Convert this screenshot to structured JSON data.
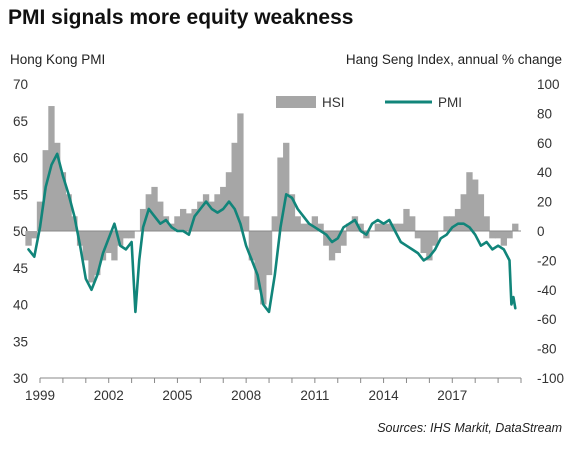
{
  "chart_data": {
    "type": "bar+line",
    "title": "PMI signals more equity weakness",
    "left_axis_label": "Hong Kong PMI",
    "right_axis_label": "Hang Seng Index, annual % change",
    "left_axis_ticks": [
      30,
      35,
      40,
      45,
      50,
      55,
      60,
      65,
      70
    ],
    "right_axis_ticks": [
      -100,
      -80,
      -60,
      -40,
      -20,
      0,
      20,
      40,
      60,
      80,
      100
    ],
    "ylim_left": [
      30,
      70
    ],
    "ylim_right": [
      -100,
      100
    ],
    "x_ticks": [
      "1999",
      "2002",
      "2005",
      "2008",
      "2011",
      "2014",
      "2017"
    ],
    "xlim": [
      1999.0,
      2020.0
    ],
    "legend_position": "top-center",
    "grid": false,
    "source": "Sources:  IHS Markit, DataStream",
    "colors": {
      "hsi": "#a6a6a6",
      "pmi": "#11857a",
      "axis": "#888888"
    },
    "series": [
      {
        "name": "HSI",
        "kind": "bar",
        "axis": "right",
        "x": [
          1998.5,
          1998.75,
          1999.0,
          1999.25,
          1999.5,
          1999.75,
          2000.0,
          2000.25,
          2000.5,
          2000.75,
          2001.0,
          2001.25,
          2001.5,
          2001.75,
          2002.0,
          2002.25,
          2002.5,
          2002.75,
          2003.0,
          2003.25,
          2003.5,
          2003.75,
          2004.0,
          2004.25,
          2004.5,
          2004.75,
          2005.0,
          2005.25,
          2005.5,
          2005.75,
          2006.0,
          2006.25,
          2006.5,
          2006.75,
          2007.0,
          2007.25,
          2007.5,
          2007.75,
          2008.0,
          2008.25,
          2008.5,
          2008.75,
          2009.0,
          2009.25,
          2009.5,
          2009.75,
          2010.0,
          2010.25,
          2010.5,
          2010.75,
          2011.0,
          2011.25,
          2011.5,
          2011.75,
          2012.0,
          2012.25,
          2012.5,
          2012.75,
          2013.0,
          2013.25,
          2013.5,
          2013.75,
          2014.0,
          2014.25,
          2014.5,
          2014.75,
          2015.0,
          2015.25,
          2015.5,
          2015.75,
          2016.0,
          2016.25,
          2016.5,
          2016.75,
          2017.0,
          2017.25,
          2017.5,
          2017.75,
          2018.0,
          2018.25,
          2018.5,
          2018.75,
          2019.0,
          2019.25,
          2019.5,
          2019.75
        ],
        "values": [
          -10,
          -5,
          20,
          55,
          85,
          60,
          40,
          25,
          10,
          -10,
          -20,
          -35,
          -30,
          -20,
          -15,
          -20,
          -10,
          -5,
          -5,
          0,
          15,
          25,
          30,
          20,
          10,
          5,
          10,
          15,
          12,
          15,
          20,
          25,
          20,
          25,
          30,
          40,
          60,
          80,
          10,
          -20,
          -40,
          -50,
          -30,
          10,
          50,
          60,
          25,
          10,
          5,
          5,
          10,
          5,
          -10,
          -20,
          -15,
          -10,
          5,
          10,
          5,
          -5,
          0,
          5,
          5,
          5,
          5,
          5,
          15,
          10,
          -5,
          -15,
          -20,
          -10,
          0,
          10,
          10,
          15,
          25,
          40,
          35,
          25,
          10,
          -5,
          -5,
          -10,
          -5,
          5
        ]
      },
      {
        "name": "PMI",
        "kind": "line",
        "axis": "left",
        "x": [
          1998.5,
          1998.75,
          1999.0,
          1999.25,
          1999.5,
          1999.75,
          2000.0,
          2000.25,
          2000.5,
          2000.75,
          2001.0,
          2001.25,
          2001.5,
          2001.75,
          2002.0,
          2002.25,
          2002.5,
          2002.75,
          2003.0,
          2003.167,
          2003.333,
          2003.5,
          2003.75,
          2004.0,
          2004.25,
          2004.5,
          2004.75,
          2005.0,
          2005.25,
          2005.5,
          2005.75,
          2006.0,
          2006.25,
          2006.5,
          2006.75,
          2007.0,
          2007.25,
          2007.5,
          2007.75,
          2008.0,
          2008.25,
          2008.5,
          2008.75,
          2009.0,
          2009.25,
          2009.5,
          2009.75,
          2010.0,
          2010.25,
          2010.5,
          2010.75,
          2011.0,
          2011.25,
          2011.5,
          2011.75,
          2012.0,
          2012.25,
          2012.5,
          2012.75,
          2013.0,
          2013.25,
          2013.5,
          2013.75,
          2014.0,
          2014.25,
          2014.5,
          2014.75,
          2015.0,
          2015.25,
          2015.5,
          2015.75,
          2016.0,
          2016.25,
          2016.5,
          2016.75,
          2017.0,
          2017.25,
          2017.5,
          2017.75,
          2018.0,
          2018.25,
          2018.5,
          2018.75,
          2019.0,
          2019.25,
          2019.5,
          2019.583,
          2019.667,
          2019.75
        ],
        "values": [
          47.5,
          46.5,
          50.5,
          56,
          59,
          60.5,
          57.5,
          55,
          52,
          48,
          43.5,
          42,
          44,
          47,
          49,
          51,
          48,
          47.5,
          48.5,
          39,
          46,
          50.5,
          53,
          52,
          51,
          51.5,
          50.5,
          50,
          50,
          49.5,
          52,
          53,
          54,
          53,
          52.5,
          53,
          54,
          53,
          51,
          48,
          46,
          44,
          40,
          39,
          44,
          50.5,
          55,
          54.5,
          53,
          52,
          51,
          50.5,
          50,
          49.5,
          48.5,
          49,
          50.5,
          51,
          51.5,
          50,
          49.5,
          51,
          51.5,
          51,
          51.5,
          50,
          48.5,
          48,
          47.5,
          47,
          46,
          46.5,
          47.5,
          49,
          49.5,
          50.5,
          51,
          51,
          50.5,
          49.5,
          48,
          48.5,
          47.5,
          48,
          47.5,
          46,
          40,
          41,
          39.5
        ]
      }
    ]
  }
}
